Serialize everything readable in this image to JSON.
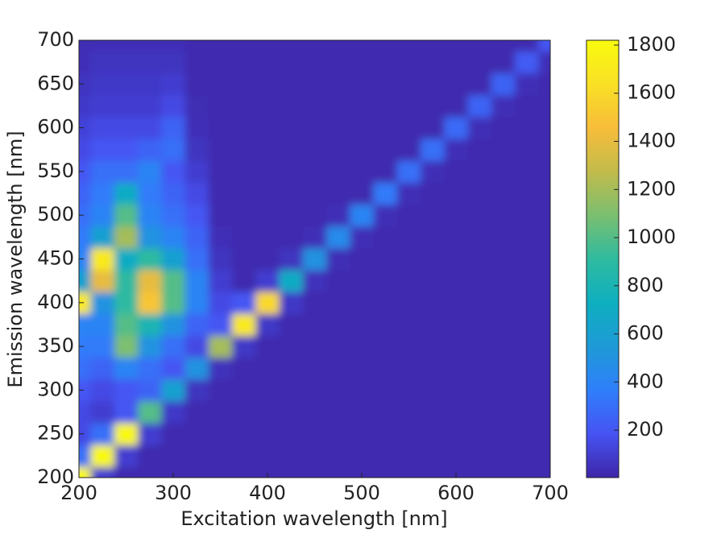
{
  "chart_data": {
    "type": "contour",
    "xlabel": "Excitation wavelength [nm]",
    "ylabel": "Emission wavelength [nm]",
    "x": [
      200,
      225,
      250,
      275,
      300,
      325,
      350,
      375,
      400,
      425,
      450,
      475,
      500,
      525,
      550,
      575,
      600,
      625,
      650,
      675,
      700
    ],
    "y": [
      200,
      225,
      250,
      275,
      300,
      325,
      350,
      375,
      400,
      425,
      450,
      475,
      500,
      525,
      550,
      575,
      600,
      625,
      650,
      675,
      700
    ],
    "z": [
      [
        1800,
        100,
        20,
        20,
        20,
        20,
        20,
        20,
        20,
        20,
        20,
        20,
        20,
        20,
        20,
        20,
        20,
        20,
        20,
        20,
        20
      ],
      [
        300,
        1800,
        100,
        20,
        20,
        20,
        20,
        20,
        20,
        20,
        20,
        20,
        20,
        20,
        20,
        20,
        20,
        20,
        20,
        20,
        20
      ],
      [
        150,
        300,
        1800,
        100,
        20,
        20,
        20,
        20,
        20,
        20,
        20,
        20,
        20,
        20,
        20,
        20,
        20,
        20,
        20,
        20,
        20
      ],
      [
        150,
        100,
        200,
        1000,
        80,
        20,
        20,
        20,
        20,
        20,
        20,
        20,
        20,
        20,
        20,
        20,
        20,
        20,
        20,
        20,
        20
      ],
      [
        200,
        150,
        200,
        250,
        600,
        60,
        20,
        20,
        20,
        20,
        20,
        20,
        20,
        20,
        20,
        20,
        20,
        20,
        20,
        20,
        20
      ],
      [
        300,
        250,
        400,
        300,
        200,
        500,
        50,
        20,
        20,
        20,
        20,
        20,
        20,
        20,
        20,
        20,
        20,
        20,
        20,
        20,
        20
      ],
      [
        350,
        350,
        1100,
        500,
        300,
        150,
        1200,
        80,
        20,
        20,
        20,
        20,
        20,
        20,
        20,
        20,
        20,
        20,
        20,
        20,
        20
      ],
      [
        400,
        400,
        1000,
        800,
        500,
        250,
        200,
        1700,
        80,
        20,
        20,
        20,
        20,
        20,
        20,
        20,
        20,
        20,
        20,
        20,
        20
      ],
      [
        1700,
        500,
        900,
        1500,
        1000,
        400,
        150,
        200,
        1600,
        80,
        20,
        20,
        20,
        20,
        20,
        20,
        20,
        20,
        20,
        20,
        20
      ],
      [
        600,
        1400,
        900,
        1400,
        1000,
        400,
        100,
        20,
        100,
        700,
        50,
        20,
        20,
        20,
        20,
        20,
        20,
        20,
        20,
        20,
        20
      ],
      [
        400,
        1700,
        700,
        900,
        600,
        300,
        60,
        20,
        20,
        60,
        500,
        40,
        20,
        20,
        20,
        20,
        20,
        20,
        20,
        20,
        20
      ],
      [
        350,
        600,
        1200,
        500,
        400,
        250,
        40,
        20,
        20,
        20,
        40,
        450,
        40,
        20,
        20,
        20,
        20,
        20,
        20,
        20,
        20
      ],
      [
        300,
        400,
        1000,
        400,
        300,
        200,
        20,
        20,
        20,
        20,
        20,
        40,
        400,
        40,
        20,
        20,
        20,
        20,
        20,
        20,
        20
      ],
      [
        250,
        350,
        700,
        350,
        250,
        150,
        20,
        20,
        20,
        20,
        20,
        20,
        20,
        350,
        40,
        20,
        20,
        20,
        20,
        20,
        20
      ],
      [
        200,
        300,
        300,
        400,
        200,
        100,
        20,
        20,
        20,
        20,
        20,
        20,
        20,
        20,
        300,
        40,
        20,
        20,
        20,
        20,
        20
      ],
      [
        150,
        200,
        200,
        250,
        300,
        60,
        20,
        20,
        20,
        20,
        20,
        20,
        20,
        20,
        20,
        300,
        40,
        20,
        20,
        20,
        20
      ],
      [
        120,
        150,
        150,
        150,
        250,
        40,
        20,
        20,
        20,
        20,
        20,
        20,
        20,
        20,
        20,
        20,
        280,
        40,
        20,
        20,
        20
      ],
      [
        80,
        100,
        100,
        100,
        150,
        30,
        20,
        20,
        20,
        20,
        20,
        20,
        20,
        20,
        20,
        20,
        20,
        250,
        40,
        20,
        20
      ],
      [
        60,
        80,
        80,
        80,
        100,
        20,
        20,
        20,
        20,
        20,
        20,
        20,
        20,
        20,
        20,
        20,
        20,
        20,
        250,
        40,
        20
      ],
      [
        40,
        60,
        60,
        60,
        60,
        20,
        20,
        20,
        20,
        20,
        20,
        20,
        20,
        20,
        20,
        20,
        20,
        20,
        20,
        220,
        40
      ],
      [
        30,
        40,
        40,
        40,
        40,
        20,
        20,
        20,
        20,
        20,
        20,
        20,
        20,
        20,
        20,
        20,
        20,
        20,
        20,
        20,
        200
      ]
    ],
    "xlim": [
      200,
      700
    ],
    "xticks": [
      200,
      300,
      400,
      500,
      600,
      700
    ],
    "ylim": [
      200,
      700
    ],
    "yticks": [
      200,
      250,
      300,
      350,
      400,
      450,
      500,
      550,
      600,
      650,
      700
    ],
    "clim": [
      3,
      1820
    ],
    "cticks": [
      200,
      400,
      600,
      800,
      1000,
      1200,
      1400,
      1600,
      1800
    ],
    "colormap": [
      "#3e26a8",
      "#4653f2",
      "#2f7ffb",
      "#1e9ad6",
      "#0eafc0",
      "#2fbb9f",
      "#7bbf70",
      "#c2bb4b",
      "#f8bd3a",
      "#f9e025",
      "#f9fb0e"
    ]
  }
}
